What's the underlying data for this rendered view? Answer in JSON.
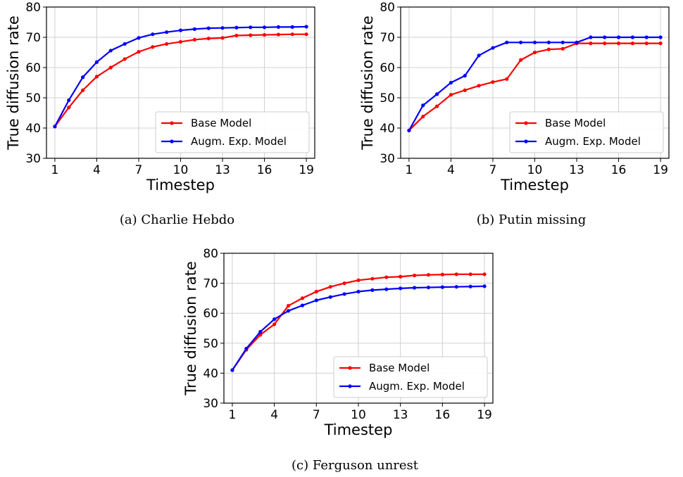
{
  "chart_data": [
    {
      "type": "line",
      "xlabel": "Timestep",
      "ylabel": "True diffusion rate",
      "caption": "(a) Charlie Hebdo",
      "xlim": [
        0.4,
        19.6
      ],
      "ylim": [
        30,
        80
      ],
      "xticks": [
        1,
        4,
        7,
        10,
        13,
        16,
        19
      ],
      "yticks": [
        30,
        40,
        50,
        60,
        70,
        80
      ],
      "grid": true,
      "legend_position": "lower-right",
      "x": [
        1,
        2,
        3,
        4,
        5,
        6,
        7,
        8,
        9,
        10,
        11,
        12,
        13,
        14,
        15,
        16,
        17,
        18,
        19
      ],
      "series": [
        {
          "name": "Base Model",
          "color": "#ff0000",
          "values": [
            40.5,
            46.8,
            52.5,
            57.0,
            60.0,
            62.8,
            65.2,
            66.8,
            67.8,
            68.5,
            69.2,
            69.6,
            69.8,
            70.6,
            70.7,
            70.8,
            70.9,
            71.0,
            71.0
          ]
        },
        {
          "name": "Augm. Exp. Model",
          "color": "#0000ff",
          "values": [
            40.5,
            49.2,
            56.8,
            61.8,
            65.6,
            67.8,
            69.8,
            71.0,
            71.7,
            72.3,
            72.7,
            73.0,
            73.1,
            73.2,
            73.3,
            73.3,
            73.4,
            73.4,
            73.5
          ]
        }
      ]
    },
    {
      "type": "line",
      "xlabel": "Timestep",
      "ylabel": "True diffusion rate",
      "caption": "(b) Putin missing",
      "xlim": [
        0.4,
        19.6
      ],
      "ylim": [
        30,
        80
      ],
      "xticks": [
        1,
        4,
        7,
        10,
        13,
        16,
        19
      ],
      "yticks": [
        30,
        40,
        50,
        60,
        70,
        80
      ],
      "grid": true,
      "legend_position": "lower-right",
      "x": [
        1,
        2,
        3,
        4,
        5,
        6,
        7,
        8,
        9,
        10,
        11,
        12,
        13,
        14,
        15,
        16,
        17,
        18,
        19
      ],
      "series": [
        {
          "name": "Base Model",
          "color": "#ff0000",
          "values": [
            39.2,
            43.8,
            47.2,
            51.0,
            52.5,
            54.0,
            55.2,
            56.2,
            62.5,
            65.0,
            66.0,
            66.2,
            68.0,
            68.0,
            68.0,
            68.0,
            68.0,
            68.0,
            68.0
          ]
        },
        {
          "name": "Augm. Exp. Model",
          "color": "#0000ff",
          "values": [
            39.2,
            47.5,
            51.2,
            55.0,
            57.3,
            64.0,
            66.5,
            68.3,
            68.3,
            68.3,
            68.3,
            68.3,
            68.3,
            70.0,
            70.0,
            70.0,
            70.0,
            70.0,
            70.0
          ]
        }
      ]
    },
    {
      "type": "line",
      "xlabel": "Timestep",
      "ylabel": "True diffusion rate",
      "caption": "(c) Ferguson unrest",
      "xlim": [
        0.4,
        19.6
      ],
      "ylim": [
        30,
        80
      ],
      "xticks": [
        1,
        4,
        7,
        10,
        13,
        16,
        19
      ],
      "yticks": [
        30,
        40,
        50,
        60,
        70,
        80
      ],
      "grid": true,
      "legend_position": "lower-right",
      "x": [
        1,
        2,
        3,
        4,
        5,
        6,
        7,
        8,
        9,
        10,
        11,
        12,
        13,
        14,
        15,
        16,
        17,
        18,
        19
      ],
      "series": [
        {
          "name": "Base Model",
          "color": "#ff0000",
          "values": [
            41.0,
            47.8,
            52.8,
            56.3,
            62.5,
            65.0,
            67.2,
            68.8,
            70.0,
            71.0,
            71.5,
            72.0,
            72.2,
            72.6,
            72.8,
            72.9,
            73.0,
            73.0,
            73.0
          ]
        },
        {
          "name": "Augm. Exp. Model",
          "color": "#0000ff",
          "values": [
            41.0,
            48.2,
            53.8,
            58.0,
            60.8,
            62.6,
            64.3,
            65.4,
            66.4,
            67.2,
            67.7,
            68.0,
            68.3,
            68.5,
            68.6,
            68.7,
            68.8,
            68.9,
            69.0
          ]
        }
      ]
    }
  ]
}
